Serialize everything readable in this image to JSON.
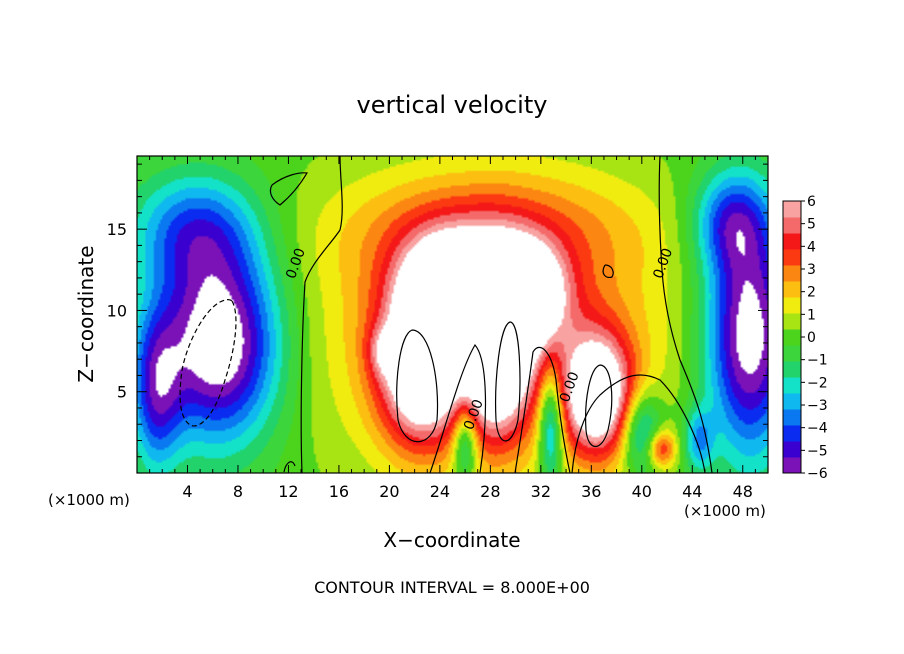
{
  "chart_data": {
    "type": "heatmap",
    "title": "vertical velocity",
    "xlabel": "X−coordinate",
    "ylabel": "Z−coordinate",
    "x_unit_left": "(×1000 m)",
    "x_unit_right": "(×1000 m)",
    "footer": "CONTOUR INTERVAL = 8.000E+00",
    "xlim": [
      0,
      50
    ],
    "ylim": [
      0,
      19.5
    ],
    "x_ticks": [
      4,
      8,
      12,
      16,
      20,
      24,
      28,
      32,
      36,
      40,
      44,
      48
    ],
    "x_tick_labels": [
      "4",
      "8",
      "12",
      "16",
      "20",
      "24",
      "28",
      "32",
      "36",
      "40",
      "44",
      "48"
    ],
    "y_ticks": [
      5,
      10,
      15
    ],
    "y_tick_labels": [
      "5",
      "10",
      "15"
    ],
    "colorbar": {
      "range": [
        -6,
        6
      ],
      "tick_values": [
        6,
        5,
        4,
        3,
        2,
        1,
        0,
        -1,
        -2,
        -3,
        -4,
        -5,
        -6
      ],
      "tick_labels": [
        "6",
        "5",
        "4",
        "3",
        "2",
        "1",
        "0",
        "−1",
        "−2",
        "−3",
        "−4",
        "−5",
        "−6"
      ],
      "colors": [
        "#7a12b8",
        "#3a00d0",
        "#0a2cf0",
        "#0a78f0",
        "#10b8f0",
        "#14e2c8",
        "#22d26a",
        "#3cd63c",
        "#4cd41c",
        "#a8e414",
        "#f0ec10",
        "#fcbe10",
        "#fc8612",
        "#fc3a12",
        "#f41818",
        "#f46a6a",
        "#f8a2a2"
      ]
    },
    "contour_labels": [
      {
        "text": "0.00",
        "x": 12.9,
        "z": 12.8
      },
      {
        "text": "0.00",
        "x": 42.0,
        "z": 12.8
      },
      {
        "text": "0.00",
        "x": 27.0,
        "z": 3.5
      },
      {
        "text": "0.00",
        "x": 34.6,
        "z": 5.2
      }
    ],
    "features": [
      {
        "kind": "updraft",
        "x": 22.5,
        "z": 6.5,
        "rx": 3.2,
        "rz": 4.6,
        "w": 7.5
      },
      {
        "kind": "updraft",
        "x": 28.5,
        "z": 7.5,
        "rx": 2.8,
        "rz": 5.2,
        "w": 7.5
      },
      {
        "kind": "updraft",
        "x": 24.8,
        "z": 11.5,
        "rx": 3.8,
        "rz": 3.2,
        "w": 6.5
      },
      {
        "kind": "updraft",
        "x": 31.0,
        "z": 11.0,
        "rx": 3.0,
        "rz": 3.0,
        "w": 6.5
      },
      {
        "kind": "updraft",
        "x": 36.5,
        "z": 4.8,
        "rx": 2.8,
        "rz": 3.8,
        "w": 7.5
      },
      {
        "kind": "updraft",
        "x": 28.0,
        "z": 9.0,
        "rx": 13.5,
        "rz": 8.5,
        "w": 3.5
      },
      {
        "kind": "updraft",
        "x": 28.0,
        "z": 15.0,
        "rx": 12.0,
        "rz": 3.5,
        "w": 2.0
      },
      {
        "kind": "updraft",
        "x": 41.5,
        "z": 1.5,
        "rx": 1.2,
        "rz": 1.2,
        "w": 4.0
      },
      {
        "kind": "updraft",
        "x": 19.5,
        "z": 7.5,
        "rx": 1.2,
        "rz": 1.5,
        "w": 2.0
      },
      {
        "kind": "downdraft",
        "x": 6.5,
        "z": 8.0,
        "rx": 4.8,
        "rz": 6.0,
        "w": -7.5
      },
      {
        "kind": "downdraft",
        "x": 4.5,
        "z": 15.0,
        "rx": 5.0,
        "rz": 3.5,
        "w": -3.5
      },
      {
        "kind": "downdraft",
        "x": 1.5,
        "z": 5.0,
        "rx": 2.0,
        "rz": 5.0,
        "w": -4.0
      },
      {
        "kind": "downdraft",
        "x": 48.5,
        "z": 8.5,
        "rx": 3.5,
        "rz": 7.5,
        "w": -7.0
      },
      {
        "kind": "downdraft",
        "x": 47.0,
        "z": 15.5,
        "rx": 3.0,
        "rz": 3.0,
        "w": -3.5
      },
      {
        "kind": "downdraft",
        "x": 32.8,
        "z": 3.0,
        "rx": 1.0,
        "rz": 3.5,
        "w": -5.0
      },
      {
        "kind": "downdraft",
        "x": 26.0,
        "z": 2.0,
        "rx": 1.0,
        "rz": 2.5,
        "w": -4.0
      },
      {
        "kind": "downdraft",
        "x": 40.0,
        "z": 2.5,
        "rx": 1.6,
        "rz": 2.5,
        "w": -4.0
      },
      {
        "kind": "downdraft",
        "x": 44.5,
        "z": 2.0,
        "rx": 1.2,
        "rz": 2.0,
        "w": -3.0
      }
    ]
  }
}
